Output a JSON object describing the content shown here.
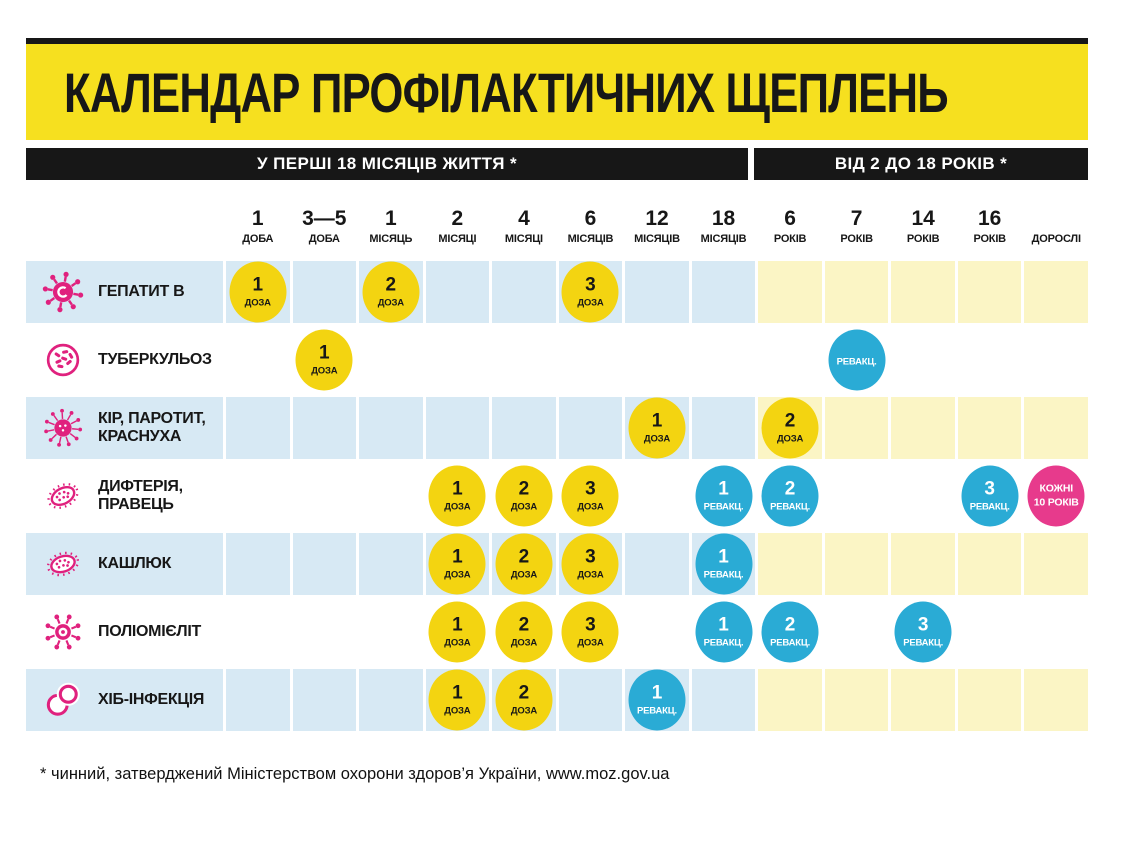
{
  "chart_data": {
    "type": "table",
    "title": "КАЛЕНДАР ПРОФІЛАКТИЧНИХ ЩЕПЛЕНЬ",
    "column_groups": [
      {
        "label": "У ПЕРШІ 18 МІСЯЦІВ ЖИТТЯ *",
        "columns_span": [
          0,
          7
        ]
      },
      {
        "label": "ВІД 2 ДО 18 РОКІВ *",
        "columns_span": [
          8,
          12
        ]
      }
    ],
    "columns": [
      {
        "num": "1",
        "unit": "ДОБА"
      },
      {
        "num": "3—5",
        "unit": "ДОБА"
      },
      {
        "num": "1",
        "unit": "МІСЯЦЬ"
      },
      {
        "num": "2",
        "unit": "МІСЯЦІ"
      },
      {
        "num": "4",
        "unit": "МІСЯЦІ"
      },
      {
        "num": "6",
        "unit": "МІСЯЦІВ"
      },
      {
        "num": "12",
        "unit": "МІСЯЦІВ"
      },
      {
        "num": "18",
        "unit": "МІСЯЦІВ"
      },
      {
        "num": "6",
        "unit": "РОКІВ"
      },
      {
        "num": "7",
        "unit": "РОКІВ"
      },
      {
        "num": "14",
        "unit": "РОКІВ"
      },
      {
        "num": "16",
        "unit": "РОКІВ"
      },
      {
        "num": "",
        "unit": "ДОРОСЛІ"
      }
    ],
    "rows": [
      {
        "disease": "ГЕПАТИТ В",
        "icon": "hepatitis-b-virus-icon",
        "shaded": true,
        "markers": [
          {
            "col": 0,
            "kind": "dose",
            "num": "1",
            "label": "ДОЗА"
          },
          {
            "col": 2,
            "kind": "dose",
            "num": "2",
            "label": "ДОЗА"
          },
          {
            "col": 5,
            "kind": "dose",
            "num": "3",
            "label": "ДОЗА"
          }
        ]
      },
      {
        "disease": "ТУБЕРКУЛЬОЗ",
        "icon": "tuberculosis-bacteria-icon",
        "shaded": false,
        "markers": [
          {
            "col": 1,
            "kind": "dose",
            "num": "1",
            "label": "ДОЗА"
          },
          {
            "col": 9,
            "kind": "revacc",
            "num": "",
            "label": "РЕВАКЦ."
          }
        ]
      },
      {
        "disease": "КІР, ПАРОТИТ, КРАСНУХА",
        "icon": "measles-virus-icon",
        "shaded": true,
        "markers": [
          {
            "col": 6,
            "kind": "dose",
            "num": "1",
            "label": "ДОЗА"
          },
          {
            "col": 8,
            "kind": "dose",
            "num": "2",
            "label": "ДОЗА"
          }
        ]
      },
      {
        "disease": "ДИФТЕРІЯ, ПРАВЕЦЬ",
        "icon": "diphtheria-bacteria-icon",
        "shaded": false,
        "markers": [
          {
            "col": 3,
            "kind": "dose",
            "num": "1",
            "label": "ДОЗА"
          },
          {
            "col": 4,
            "kind": "dose",
            "num": "2",
            "label": "ДОЗА"
          },
          {
            "col": 5,
            "kind": "dose",
            "num": "3",
            "label": "ДОЗА"
          },
          {
            "col": 7,
            "kind": "revacc",
            "num": "1",
            "label": "РЕВАКЦ."
          },
          {
            "col": 8,
            "kind": "revacc",
            "num": "2",
            "label": "РЕВАКЦ."
          },
          {
            "col": 11,
            "kind": "revacc",
            "num": "3",
            "label": "РЕВАКЦ."
          },
          {
            "col": 12,
            "kind": "every-10-years",
            "lines": [
              "КОЖНІ",
              "10 РОКІВ"
            ]
          }
        ]
      },
      {
        "disease": "КАШЛЮК",
        "icon": "pertussis-bacteria-icon",
        "shaded": true,
        "markers": [
          {
            "col": 3,
            "kind": "dose",
            "num": "1",
            "label": "ДОЗА"
          },
          {
            "col": 4,
            "kind": "dose",
            "num": "2",
            "label": "ДОЗА"
          },
          {
            "col": 5,
            "kind": "dose",
            "num": "3",
            "label": "ДОЗА"
          },
          {
            "col": 7,
            "kind": "revacc",
            "num": "1",
            "label": "РЕВАКЦ."
          }
        ]
      },
      {
        "disease": "ПОЛІОМІЄЛІТ",
        "icon": "polio-virus-icon",
        "shaded": false,
        "markers": [
          {
            "col": 3,
            "kind": "dose",
            "num": "1",
            "label": "ДОЗА"
          },
          {
            "col": 4,
            "kind": "dose",
            "num": "2",
            "label": "ДОЗА"
          },
          {
            "col": 5,
            "kind": "dose",
            "num": "3",
            "label": "ДОЗА"
          },
          {
            "col": 7,
            "kind": "revacc",
            "num": "1",
            "label": "РЕВАКЦ."
          },
          {
            "col": 8,
            "kind": "revacc",
            "num": "2",
            "label": "РЕВАКЦ."
          },
          {
            "col": 10,
            "kind": "revacc",
            "num": "3",
            "label": "РЕВАКЦ."
          }
        ]
      },
      {
        "disease": "ХІБ-ІНФЕКЦІЯ",
        "icon": "hib-bacteria-icon",
        "shaded": true,
        "markers": [
          {
            "col": 3,
            "kind": "dose",
            "num": "1",
            "label": "ДОЗА"
          },
          {
            "col": 4,
            "kind": "dose",
            "num": "2",
            "label": "ДОЗА"
          },
          {
            "col": 6,
            "kind": "revacc",
            "num": "1",
            "label": "РЕВАКЦ."
          }
        ]
      }
    ]
  },
  "footnote": "* чинний, затверджений Міністерством охорони здоров’я України, www.moz.gov.ua",
  "colors": {
    "banner_yellow": "#f6e01f",
    "bar_black": "#171717",
    "cell_light_blue": "#d7e9f4",
    "cell_light_yellow": "#fbf5c5",
    "dose_yellow": "#f3d411",
    "revacc_blue": "#2aabd5",
    "special_pink": "#e73a8c",
    "icon_pink": "#e0217e"
  }
}
